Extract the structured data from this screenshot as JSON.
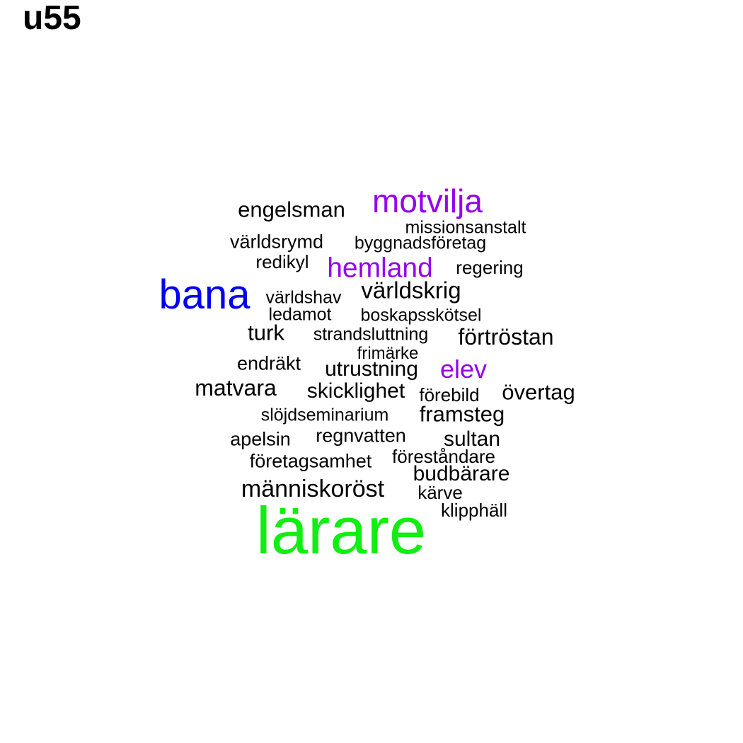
{
  "title": "u55",
  "colors": {
    "default": "#000000",
    "purple": "#9400ee",
    "blue": "#0000ee",
    "green": "#11ee11"
  },
  "words": [
    {
      "text": "motvilja",
      "color": "purple"
    },
    {
      "text": "engelsman",
      "color": "default"
    },
    {
      "text": "missionsanstalt",
      "color": "default"
    },
    {
      "text": "världsrymd",
      "color": "default"
    },
    {
      "text": "byggnadsföretag",
      "color": "default"
    },
    {
      "text": "redikyl",
      "color": "default"
    },
    {
      "text": "hemland",
      "color": "purple"
    },
    {
      "text": "regering",
      "color": "default"
    },
    {
      "text": "bana",
      "color": "blue"
    },
    {
      "text": "världshav",
      "color": "default"
    },
    {
      "text": "världskrig",
      "color": "default"
    },
    {
      "text": "ledamot",
      "color": "default"
    },
    {
      "text": "boskapsskötsel",
      "color": "default"
    },
    {
      "text": "turk",
      "color": "default"
    },
    {
      "text": "strandsluttning",
      "color": "default"
    },
    {
      "text": "förtröstan",
      "color": "default"
    },
    {
      "text": "frimärke",
      "color": "default"
    },
    {
      "text": "endräkt",
      "color": "default"
    },
    {
      "text": "utrustning",
      "color": "default"
    },
    {
      "text": "elev",
      "color": "purple"
    },
    {
      "text": "matvara",
      "color": "default"
    },
    {
      "text": "skicklighet",
      "color": "default"
    },
    {
      "text": "förebild",
      "color": "default"
    },
    {
      "text": "övertag",
      "color": "default"
    },
    {
      "text": "slöjdseminarium",
      "color": "default"
    },
    {
      "text": "framsteg",
      "color": "default"
    },
    {
      "text": "apelsin",
      "color": "default"
    },
    {
      "text": "regnvatten",
      "color": "default"
    },
    {
      "text": "sultan",
      "color": "default"
    },
    {
      "text": "företagsamhet",
      "color": "default"
    },
    {
      "text": "föreståndare",
      "color": "default"
    },
    {
      "text": "budbärare",
      "color": "default"
    },
    {
      "text": "människoröst",
      "color": "default"
    },
    {
      "text": "kärve",
      "color": "default"
    },
    {
      "text": "klipphäll",
      "color": "default"
    },
    {
      "text": "lärare",
      "color": "green"
    }
  ]
}
